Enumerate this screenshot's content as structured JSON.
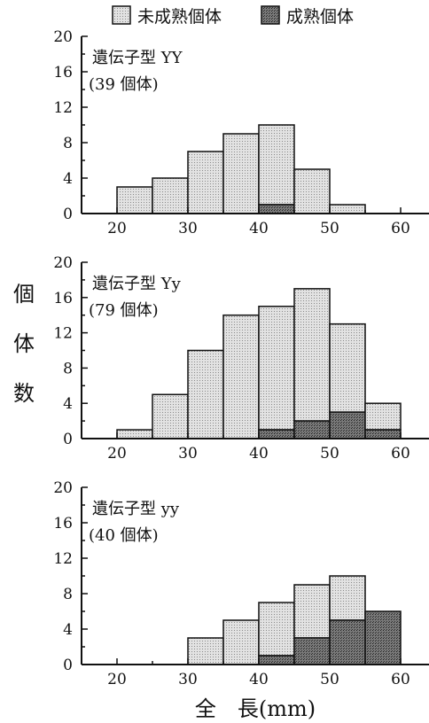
{
  "legend": {
    "immature_label": "未成熟個体",
    "mature_label": "成熟個体"
  },
  "axis": {
    "ylabel": "個体数",
    "xlabel": "全　長(mm)"
  },
  "colors": {
    "immature_fill": "#d6d6d6",
    "mature_fill": "#6e6e6e",
    "stroke": "#111111"
  },
  "chart_data": [
    {
      "type": "bar",
      "title": "遺伝子型 YY",
      "subtitle": "(39 個体)",
      "bins": [
        [
          20,
          25
        ],
        [
          25,
          30
        ],
        [
          30,
          35
        ],
        [
          35,
          40
        ],
        [
          40,
          45
        ],
        [
          45,
          50
        ],
        [
          50,
          55
        ],
        [
          55,
          60
        ]
      ],
      "series": [
        {
          "name": "未成熟個体",
          "values": [
            3,
            4,
            7,
            9,
            9,
            5,
            1,
            0
          ]
        },
        {
          "name": "成熟個体",
          "values": [
            0,
            0,
            0,
            0,
            1,
            0,
            0,
            0
          ]
        }
      ],
      "xlim": [
        15,
        64
      ],
      "ylim": [
        0,
        20
      ],
      "xticks": [
        20,
        30,
        40,
        50,
        60
      ],
      "yticks": [
        0,
        4,
        8,
        12,
        16,
        20
      ],
      "stacked": true
    },
    {
      "type": "bar",
      "title": "遺伝子型 Yy",
      "subtitle": "(79 個体)",
      "bins": [
        [
          20,
          25
        ],
        [
          25,
          30
        ],
        [
          30,
          35
        ],
        [
          35,
          40
        ],
        [
          40,
          45
        ],
        [
          45,
          50
        ],
        [
          50,
          55
        ],
        [
          55,
          60
        ]
      ],
      "series": [
        {
          "name": "未成熟個体",
          "values": [
            1,
            5,
            10,
            14,
            14,
            15,
            10,
            3
          ]
        },
        {
          "name": "成熟個体",
          "values": [
            0,
            0,
            0,
            0,
            1,
            2,
            3,
            1
          ]
        }
      ],
      "xlim": [
        15,
        64
      ],
      "ylim": [
        0,
        20
      ],
      "xticks": [
        20,
        30,
        40,
        50,
        60
      ],
      "yticks": [
        0,
        4,
        8,
        12,
        16,
        20
      ],
      "stacked": true
    },
    {
      "type": "bar",
      "title": "遺伝子型 yy",
      "subtitle": "(40 個体)",
      "bins": [
        [
          20,
          25
        ],
        [
          25,
          30
        ],
        [
          30,
          35
        ],
        [
          35,
          40
        ],
        [
          40,
          45
        ],
        [
          45,
          50
        ],
        [
          50,
          55
        ],
        [
          55,
          60
        ]
      ],
      "series": [
        {
          "name": "未成熟個体",
          "values": [
            0,
            0,
            3,
            5,
            6,
            6,
            5,
            0
          ]
        },
        {
          "name": "成熟個体",
          "values": [
            0,
            0,
            0,
            0,
            1,
            3,
            5,
            6
          ]
        }
      ],
      "xlim": [
        15,
        64
      ],
      "ylim": [
        0,
        20
      ],
      "xticks": [
        20,
        30,
        40,
        50,
        60
      ],
      "yticks": [
        0,
        4,
        8,
        12,
        16,
        20
      ],
      "stacked": true
    }
  ]
}
